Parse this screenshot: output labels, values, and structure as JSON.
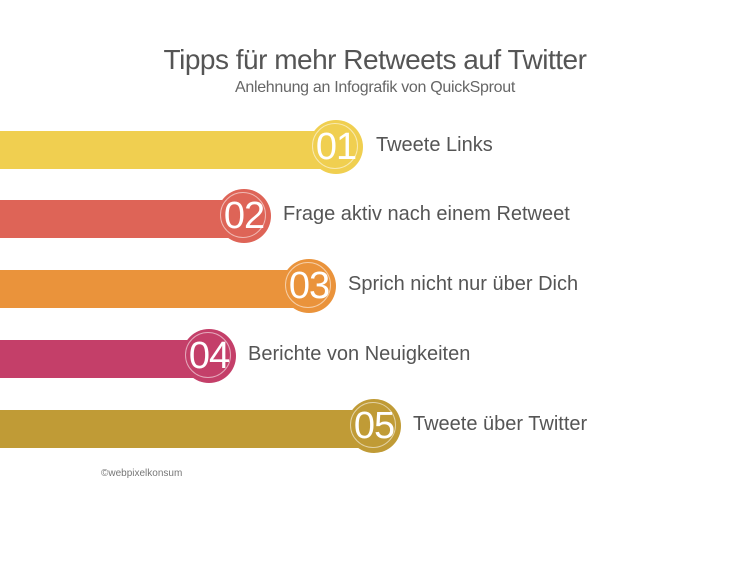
{
  "title": "Tipps für mehr Retweets auf Twitter",
  "subtitle": "Anlehnung an Infografik von QuickSprout",
  "items": [
    {
      "number": "01",
      "label": "Tweete Links",
      "color": "#f0cf50"
    },
    {
      "number": "02",
      "label": "Frage aktiv nach einem Retweet",
      "color": "#de6457"
    },
    {
      "number": "03",
      "label": "Sprich nicht nur über Dich",
      "color": "#ea933b"
    },
    {
      "number": "04",
      "label": "Berichte von Neuigkeiten",
      "color": "#c43f69"
    },
    {
      "number": "05",
      "label": "Tweete über Twitter",
      "color": "#c09b36"
    }
  ],
  "credit": "©webpixelkonsum"
}
